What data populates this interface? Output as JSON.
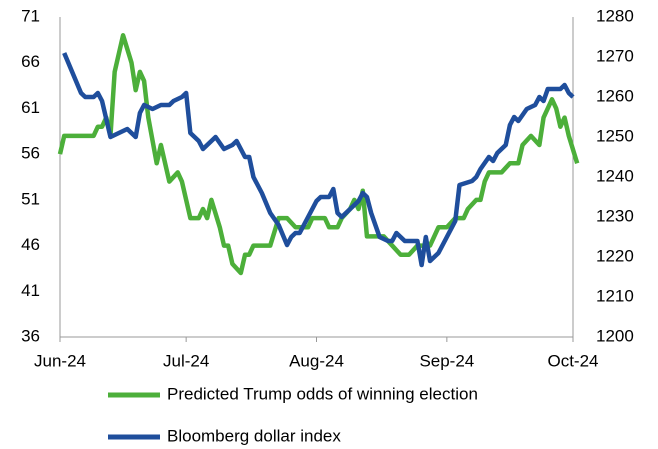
{
  "chart_data": {
    "type": "line",
    "xlim": [
      0,
      122
    ],
    "xticks": [
      {
        "value": 0,
        "label": "Jun-24"
      },
      {
        "value": 30,
        "label": "Jul-24"
      },
      {
        "value": 61,
        "label": "Aug-24"
      },
      {
        "value": 92,
        "label": "Sep-24"
      },
      {
        "value": 122,
        "label": "Oct-24"
      }
    ],
    "ylim": [
      36,
      71
    ],
    "yticks": [
      36,
      41,
      46,
      51,
      56,
      61,
      66,
      71
    ],
    "y2lim": [
      1200,
      1280
    ],
    "y2ticks": [
      1200,
      1210,
      1220,
      1230,
      1240,
      1250,
      1260,
      1270,
      1280
    ],
    "grid": false,
    "legend": "bottom",
    "series": [
      {
        "name": "Predicted Trump odds of winning election",
        "color": "#4caf3a",
        "axis": "y",
        "x": [
          0,
          1,
          3,
          6,
          8,
          9,
          10,
          11,
          12,
          13,
          15,
          17,
          18,
          19,
          20,
          21,
          23,
          24,
          26,
          28,
          29,
          31,
          33,
          34,
          35,
          36,
          38,
          39,
          40,
          41,
          43,
          44,
          45,
          46,
          50,
          52,
          54,
          56,
          59,
          60,
          63,
          64,
          66,
          67,
          69,
          70,
          71,
          72,
          73,
          76,
          77,
          79,
          81,
          83,
          85,
          88,
          89,
          90,
          92,
          94,
          96,
          97,
          99,
          100,
          101,
          102,
          105,
          107,
          109,
          110,
          112,
          114,
          115,
          117,
          118,
          119,
          120,
          121,
          123
        ],
        "values": [
          56,
          58,
          58,
          58,
          58,
          59,
          59,
          60,
          58,
          65,
          69,
          66,
          63,
          65,
          64,
          60,
          55,
          57,
          53,
          54,
          53,
          49,
          49,
          50,
          49,
          51,
          48,
          46,
          46,
          44,
          43,
          45,
          45,
          46,
          46,
          49,
          49,
          48,
          48,
          49,
          49,
          48,
          48,
          49,
          50,
          51,
          50,
          52,
          47,
          47,
          47,
          46,
          45,
          45,
          46,
          46,
          47,
          48,
          48,
          49,
          49,
          50,
          51,
          51,
          53,
          54,
          54,
          55,
          55,
          57,
          58,
          57,
          60,
          62,
          61,
          59,
          60,
          58,
          55
        ]
      },
      {
        "name": "Bloomberg dollar index",
        "color": "#1f4e9c",
        "axis": "y2",
        "x": [
          1,
          3,
          5,
          6,
          8,
          9,
          10,
          12,
          14,
          16,
          18,
          19,
          20,
          22,
          24,
          26,
          27,
          29,
          30,
          31,
          33,
          34,
          36,
          37,
          39,
          41,
          42,
          44,
          45,
          46,
          48,
          50,
          52,
          54,
          55,
          56,
          57,
          59,
          61,
          62,
          64,
          65,
          66,
          67,
          69,
          71,
          72,
          73,
          74,
          76,
          78,
          79,
          80,
          82,
          84,
          85,
          86,
          87,
          88,
          90,
          92,
          94,
          95,
          98,
          99,
          100,
          102,
          103,
          104,
          106,
          107,
          108,
          109,
          111,
          113,
          114,
          115,
          116,
          118,
          119,
          120,
          121,
          122
        ],
        "values": [
          1271,
          1266,
          1261,
          1260,
          1260,
          1261,
          1259,
          1250,
          1251,
          1252,
          1250,
          1256,
          1258,
          1257,
          1258,
          1258,
          1259,
          1260,
          1261,
          1251,
          1249,
          1247,
          1249,
          1250,
          1247,
          1248,
          1249,
          1245,
          1245,
          1240,
          1236,
          1231,
          1228,
          1223,
          1225,
          1226,
          1226,
          1230,
          1234,
          1235,
          1235,
          1237,
          1231,
          1230,
          1232,
          1234,
          1236,
          1235,
          1231,
          1225,
          1224,
          1224,
          1226,
          1224,
          1224,
          1224,
          1218,
          1225,
          1219,
          1221,
          1225,
          1229,
          1238,
          1239,
          1240,
          1242,
          1245,
          1244,
          1246,
          1248,
          1253,
          1255,
          1254,
          1257,
          1258,
          1260,
          1259,
          1262,
          1262,
          1262,
          1263,
          1261,
          1260
        ]
      }
    ]
  }
}
